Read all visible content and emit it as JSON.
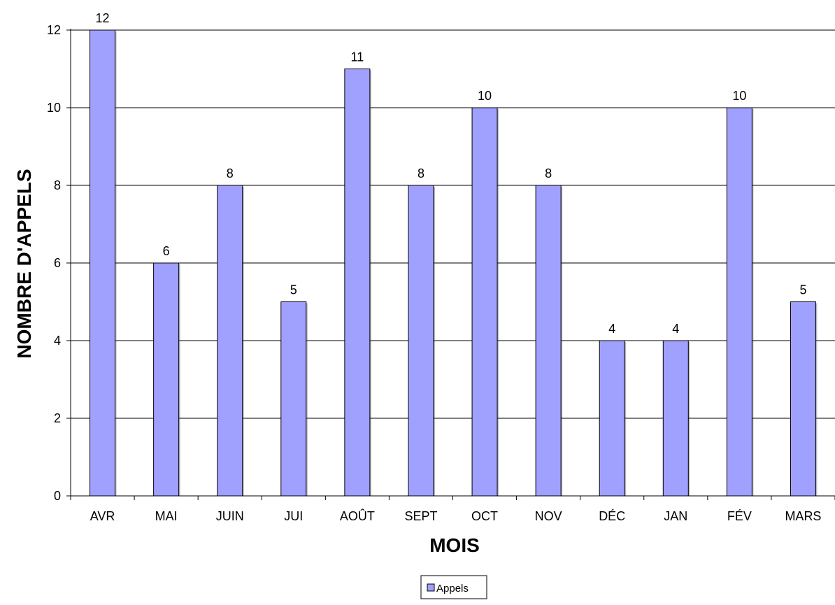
{
  "chart_data": {
    "type": "bar",
    "categories": [
      "AVR",
      "MAI",
      "JUIN",
      "JUI",
      "AOÛT",
      "SEPT",
      "OCT",
      "NOV",
      "DÉC",
      "JAN",
      "FÉV",
      "MARS"
    ],
    "series": [
      {
        "name": "Appels",
        "values": [
          12,
          6,
          8,
          5,
          11,
          8,
          10,
          8,
          4,
          4,
          10,
          5
        ],
        "color": "#a0a0ff"
      }
    ],
    "xlabel": "MOIS",
    "ylabel": "NOMBRE D'APPELS",
    "ylim": [
      0,
      12
    ],
    "yticks": [
      0,
      2,
      4,
      6,
      8,
      10,
      12
    ],
    "grid": true,
    "legend": "bottom-center",
    "data_labels": true
  }
}
